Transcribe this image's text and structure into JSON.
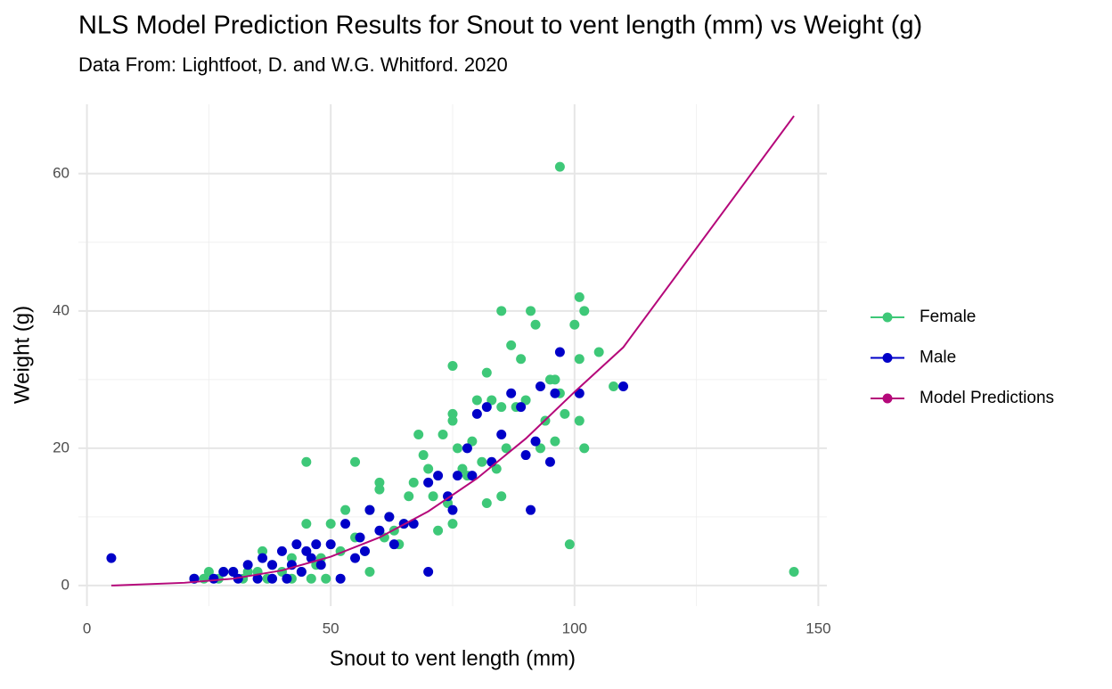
{
  "chart_data": {
    "type": "scatter",
    "title": "NLS Model Prediction Results for Snout to vent length (mm) vs Weight (g)",
    "subtitle": "Data From: Lightfoot, D. and W.G. Whitford. 2020",
    "x_label": "Snout to vent length (mm)",
    "y_label": "Weight (g)",
    "xlim": [
      -1.75,
      151.75
    ],
    "xticks": [
      0,
      50,
      100,
      150
    ],
    "minor_xticks": [
      25,
      75,
      125
    ],
    "ylim": [
      -3.0,
      70.1
    ],
    "yticks": [
      0,
      20,
      40,
      60
    ],
    "minor_yticks": [
      10,
      30,
      50
    ],
    "grid": true,
    "legend": "right",
    "series": [
      {
        "name": "Female",
        "color": "#3ec878",
        "type": "scatter",
        "x": [
          97,
          145,
          85,
          91,
          92,
          101,
          102,
          100,
          101,
          75,
          87,
          89,
          82,
          105,
          108,
          102,
          99,
          45,
          55,
          68,
          69,
          73,
          75,
          75,
          80,
          83,
          85,
          95,
          96,
          97,
          98,
          101,
          94,
          93,
          96,
          86,
          84,
          82,
          85,
          77,
          70,
          66,
          60,
          60,
          58,
          62,
          53,
          50,
          45,
          58,
          64,
          72,
          75,
          65,
          55,
          52,
          47,
          42,
          40,
          38,
          36,
          35,
          33,
          30,
          28,
          25,
          22,
          24,
          27,
          32,
          37,
          42,
          46,
          49,
          44,
          48,
          57,
          61,
          63,
          67,
          71,
          74,
          78,
          79,
          81,
          88,
          90,
          76
        ],
        "values": [
          61,
          2,
          40,
          40,
          38,
          42,
          40,
          38,
          33,
          32,
          35,
          33,
          31,
          34,
          29,
          20,
          6,
          18,
          18,
          22,
          19,
          22,
          25,
          24,
          27,
          27,
          26,
          30,
          30,
          28,
          25,
          24,
          24,
          20,
          21,
          20,
          17,
          12,
          13,
          17,
          17,
          13,
          15,
          14,
          11,
          10,
          11,
          9,
          9,
          2,
          6,
          8,
          9,
          9,
          7,
          5,
          3,
          4,
          2,
          3,
          5,
          2,
          2,
          2,
          2,
          2,
          1,
          1,
          1,
          1,
          1,
          1,
          1,
          1,
          2,
          4,
          5,
          7,
          8,
          15,
          13,
          12,
          16,
          21,
          18,
          26,
          27,
          20
        ]
      },
      {
        "name": "Male",
        "color": "#0000c8",
        "type": "scatter",
        "x": [
          5,
          70,
          91,
          97,
          110,
          101,
          96,
          93,
          87,
          80,
          82,
          89,
          85,
          92,
          95,
          90,
          83,
          78,
          76,
          72,
          70,
          74,
          75,
          79,
          65,
          62,
          58,
          56,
          53,
          50,
          47,
          45,
          43,
          40,
          38,
          36,
          33,
          30,
          28,
          26,
          22,
          31,
          35,
          41,
          44,
          48,
          52,
          55,
          60,
          63,
          67,
          57,
          42,
          46,
          38
        ],
        "values": [
          4,
          2,
          11,
          34,
          29,
          28,
          28,
          29,
          28,
          25,
          26,
          26,
          22,
          21,
          18,
          19,
          18,
          20,
          16,
          16,
          15,
          13,
          11,
          16,
          9,
          10,
          11,
          7,
          9,
          6,
          6,
          5,
          6,
          5,
          3,
          4,
          3,
          2,
          2,
          1,
          1,
          1,
          1,
          1,
          2,
          3,
          1,
          4,
          8,
          6,
          9,
          5,
          3,
          4,
          1
        ]
      },
      {
        "name": "Model Predictions",
        "color": "#b5087a",
        "type": "line",
        "x": [
          5,
          20,
          30,
          40,
          50,
          60,
          70,
          80,
          90,
          100,
          110,
          145
        ],
        "values": [
          0,
          0.4,
          1,
          2.2,
          4.2,
          7,
          10.8,
          15.6,
          21.4,
          28.2,
          34.7,
          68.4
        ]
      }
    ]
  }
}
